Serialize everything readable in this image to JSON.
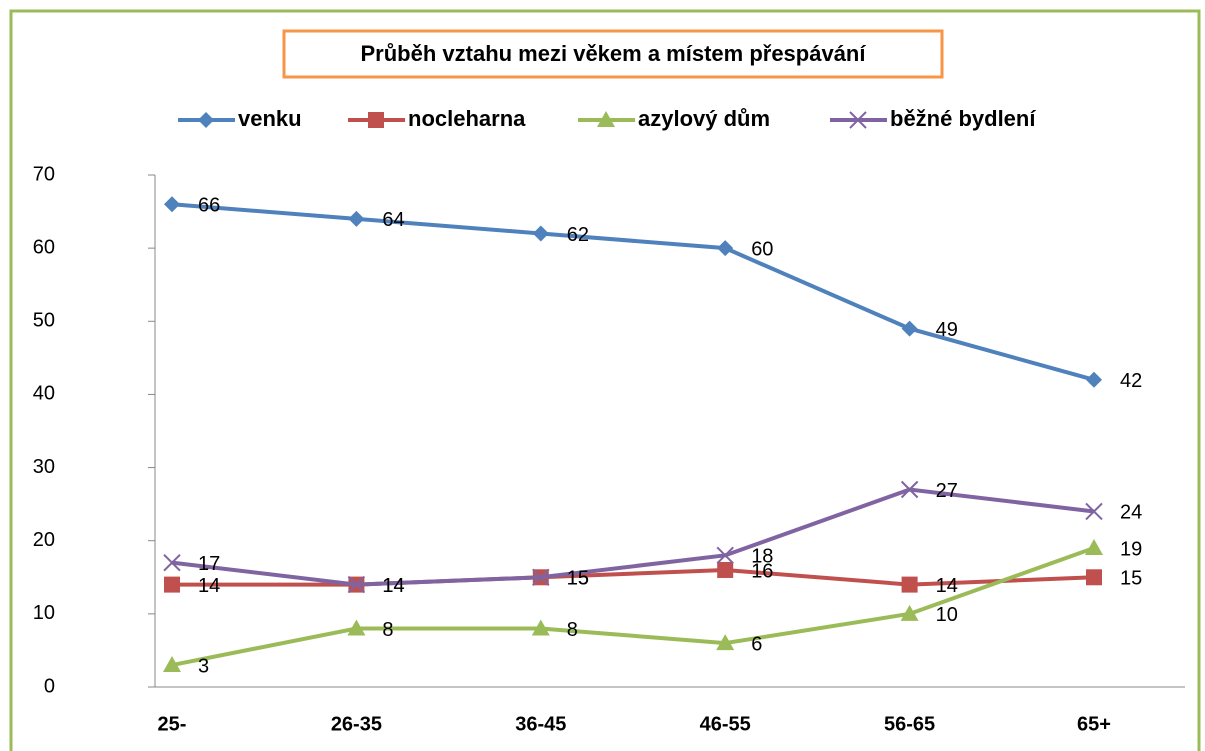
{
  "chart_data": {
    "type": "line",
    "title": "Průběh vztahu mezi věkem a místem přespávání",
    "categories": [
      "25-",
      "26-35",
      "36-45",
      "46-55",
      "56-65",
      "65+"
    ],
    "series": [
      {
        "name": "venku",
        "color": "#4f81bd",
        "marker": "diamond",
        "values": [
          66,
          64,
          62,
          60,
          49,
          42
        ]
      },
      {
        "name": "nocleharna",
        "color": "#c0504d",
        "marker": "square",
        "values": [
          14,
          14,
          15,
          16,
          14,
          15
        ]
      },
      {
        "name": "azylový dům",
        "color": "#9bbb59",
        "marker": "triangle",
        "values": [
          3,
          8,
          8,
          6,
          10,
          19
        ]
      },
      {
        "name": "běžné bydlení",
        "color": "#8064a2",
        "marker": "x",
        "values": [
          17,
          14,
          15,
          18,
          27,
          24
        ]
      }
    ],
    "ylim": [
      0,
      70
    ],
    "yticks": [
      0,
      10,
      20,
      30,
      40,
      50,
      60,
      70
    ],
    "grid": false,
    "legend": "top"
  }
}
